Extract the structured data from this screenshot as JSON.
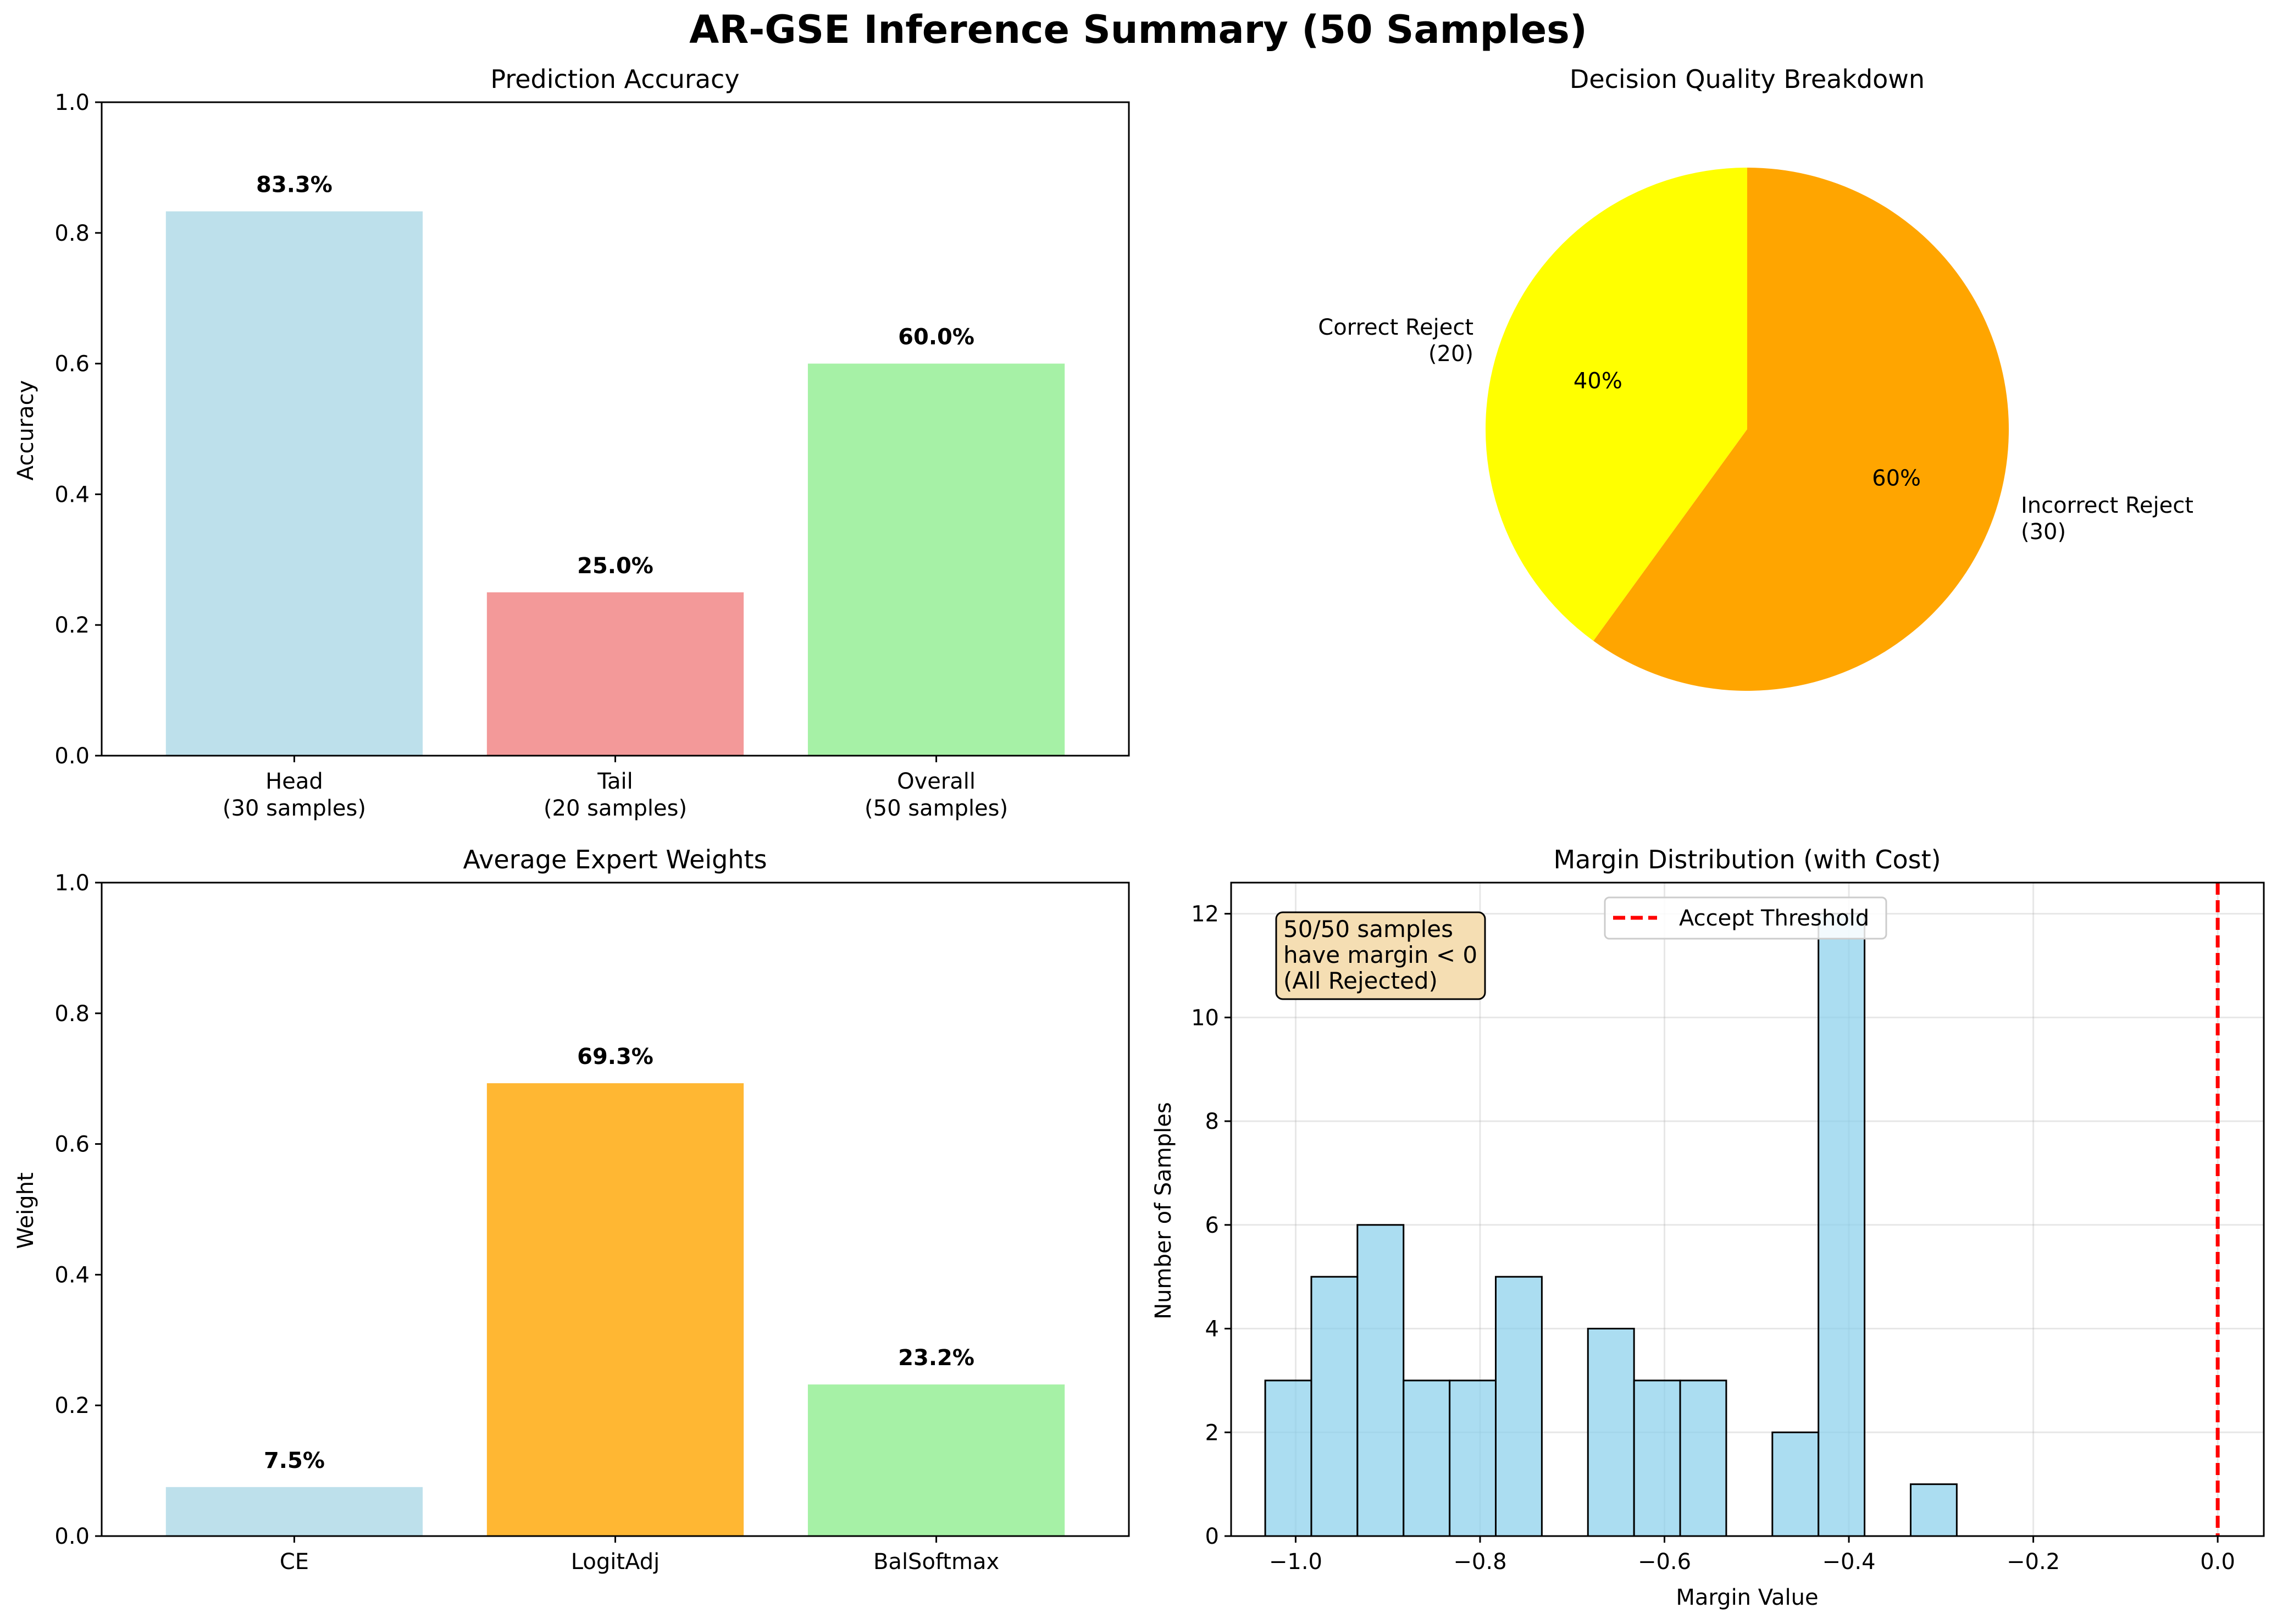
{
  "suptitle": "AR-GSE Inference Summary (50 Samples)",
  "chart_data": [
    {
      "type": "bar",
      "title": "Prediction Accuracy",
      "xlabel": "",
      "ylabel": "Accuracy",
      "ylim": [
        0,
        1.0
      ],
      "yticks": [
        "0.0",
        "0.2",
        "0.4",
        "0.6",
        "0.8",
        "1.0"
      ],
      "categories": [
        "Head\n(30 samples)",
        "Tail\n(20 samples)",
        "Overall\n(50 samples)"
      ],
      "values": [
        0.833,
        0.25,
        0.6
      ],
      "labels": [
        "83.3%",
        "25.0%",
        "60.0%"
      ],
      "colors": [
        "#add8e6",
        "#f08080",
        "#90ee90"
      ]
    },
    {
      "type": "pie",
      "title": "Decision Quality Breakdown",
      "slices": [
        {
          "label": "Correct Reject\n(20)",
          "value": 20,
          "pct": "40%",
          "color": "#ffff00"
        },
        {
          "label": "Incorrect Reject\n(30)",
          "value": 30,
          "pct": "60%",
          "color": "#ffa500"
        }
      ]
    },
    {
      "type": "bar",
      "title": "Average Expert Weights",
      "xlabel": "",
      "ylabel": "Weight",
      "ylim": [
        0,
        1.0
      ],
      "yticks": [
        "0.0",
        "0.2",
        "0.4",
        "0.6",
        "0.8",
        "1.0"
      ],
      "categories": [
        "CE",
        "LogitAdj",
        "BalSoftmax"
      ],
      "values": [
        0.075,
        0.693,
        0.232
      ],
      "labels": [
        "7.5%",
        "69.3%",
        "23.2%"
      ],
      "colors": [
        "#add8e6",
        "#ffa500",
        "#90ee90"
      ]
    },
    {
      "type": "histogram",
      "title": "Margin Distribution (with Cost)",
      "xlabel": "Margin Value",
      "ylabel": "Number of Samples",
      "xlim": [
        -1.07,
        0.05
      ],
      "ylim": [
        0,
        12.6
      ],
      "xticks": [
        -1.0,
        -0.8,
        -0.6,
        -0.4,
        -0.2,
        0.0
      ],
      "xtick_labels": [
        "−1.0",
        "−0.8",
        "−0.6",
        "−0.4",
        "−0.2",
        "0.0"
      ],
      "yticks": [
        0,
        2,
        4,
        6,
        8,
        10,
        12
      ],
      "ytick_labels": [
        "0",
        "2",
        "4",
        "6",
        "8",
        "10",
        "12"
      ],
      "grid": true,
      "bin_edges": [
        -1.033,
        -0.983,
        -0.933,
        -0.883,
        -0.833,
        -0.783,
        -0.733,
        -0.683,
        -0.633,
        -0.583,
        -0.533,
        -0.483,
        -0.433,
        -0.383,
        -0.333,
        -0.283,
        -0.233,
        -0.183
      ],
      "counts": [
        3,
        5,
        6,
        3,
        3,
        5,
        0,
        4,
        3,
        3,
        0,
        2,
        12,
        0,
        1,
        0,
        0
      ],
      "bar_color": "#87ceeb",
      "threshold": {
        "x": 0.0,
        "label": "Accept Threshold",
        "color": "#ff0000"
      },
      "legend_position": "upper center",
      "annotation": [
        "50/50 samples",
        "have margin < 0",
        "(All Rejected)"
      ]
    }
  ]
}
